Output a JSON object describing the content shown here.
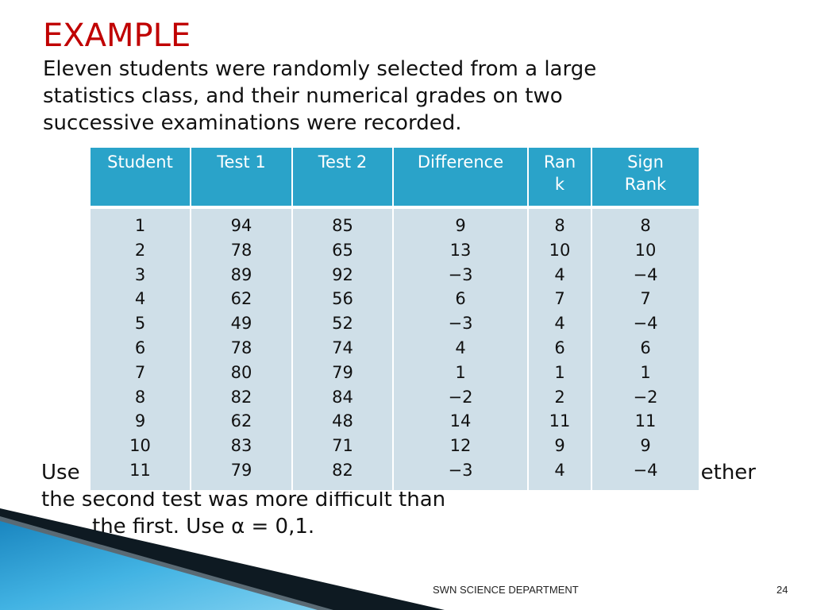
{
  "slide": {
    "title": "EXAMPLE",
    "intro_lines": [
      "Eleven students were randomly selected from a large",
      "statistics class, and their numerical grades on two",
      "successive examinations were recorded."
    ],
    "question_line1_left": "Use",
    "question_line1_right": "ether",
    "question_line2": "the second test was more difficult than",
    "question_line3": "the first. Use α = 0,1."
  },
  "table": {
    "headers": {
      "student": "Student",
      "test1": "Test 1",
      "test2": "Test 2",
      "difference": "Difference",
      "rank_a": "Ran",
      "rank_b": "k",
      "sign_rank_a": "Sign",
      "sign_rank_b": "Rank"
    },
    "student": [
      "1",
      "2",
      "3",
      "4",
      "5",
      "6",
      "7",
      "8",
      "9",
      "10",
      "11"
    ],
    "test1": [
      "94",
      "78",
      "89",
      "62",
      "49",
      "78",
      "80",
      "82",
      "62",
      "83",
      "79"
    ],
    "test2": [
      "85",
      "65",
      "92",
      "56",
      "52",
      "74",
      "79",
      "84",
      "48",
      "71",
      "82"
    ],
    "difference": [
      "9",
      "13",
      "−3",
      "6",
      "−3",
      "4",
      "1",
      "−2",
      "14",
      "12",
      "−3"
    ],
    "rank": [
      "8",
      "10",
      "4",
      "7",
      "4",
      "6",
      "1",
      "2",
      "11",
      "9",
      "4"
    ],
    "sign_rank": [
      "8",
      "10",
      "−4",
      "7",
      "−4",
      "6",
      "1",
      "−2",
      "11",
      "9",
      "−4"
    ]
  },
  "footer": {
    "department": "SWN   SCIENCE DEPARTMENT",
    "page_number": "24"
  },
  "colors": {
    "title": "#c00000",
    "header_bg": "#2aa3c9",
    "body_bg": "#cfdfe8",
    "wedge_dark": "#0e1a22",
    "wedge_blue": "#2f9fd0"
  }
}
